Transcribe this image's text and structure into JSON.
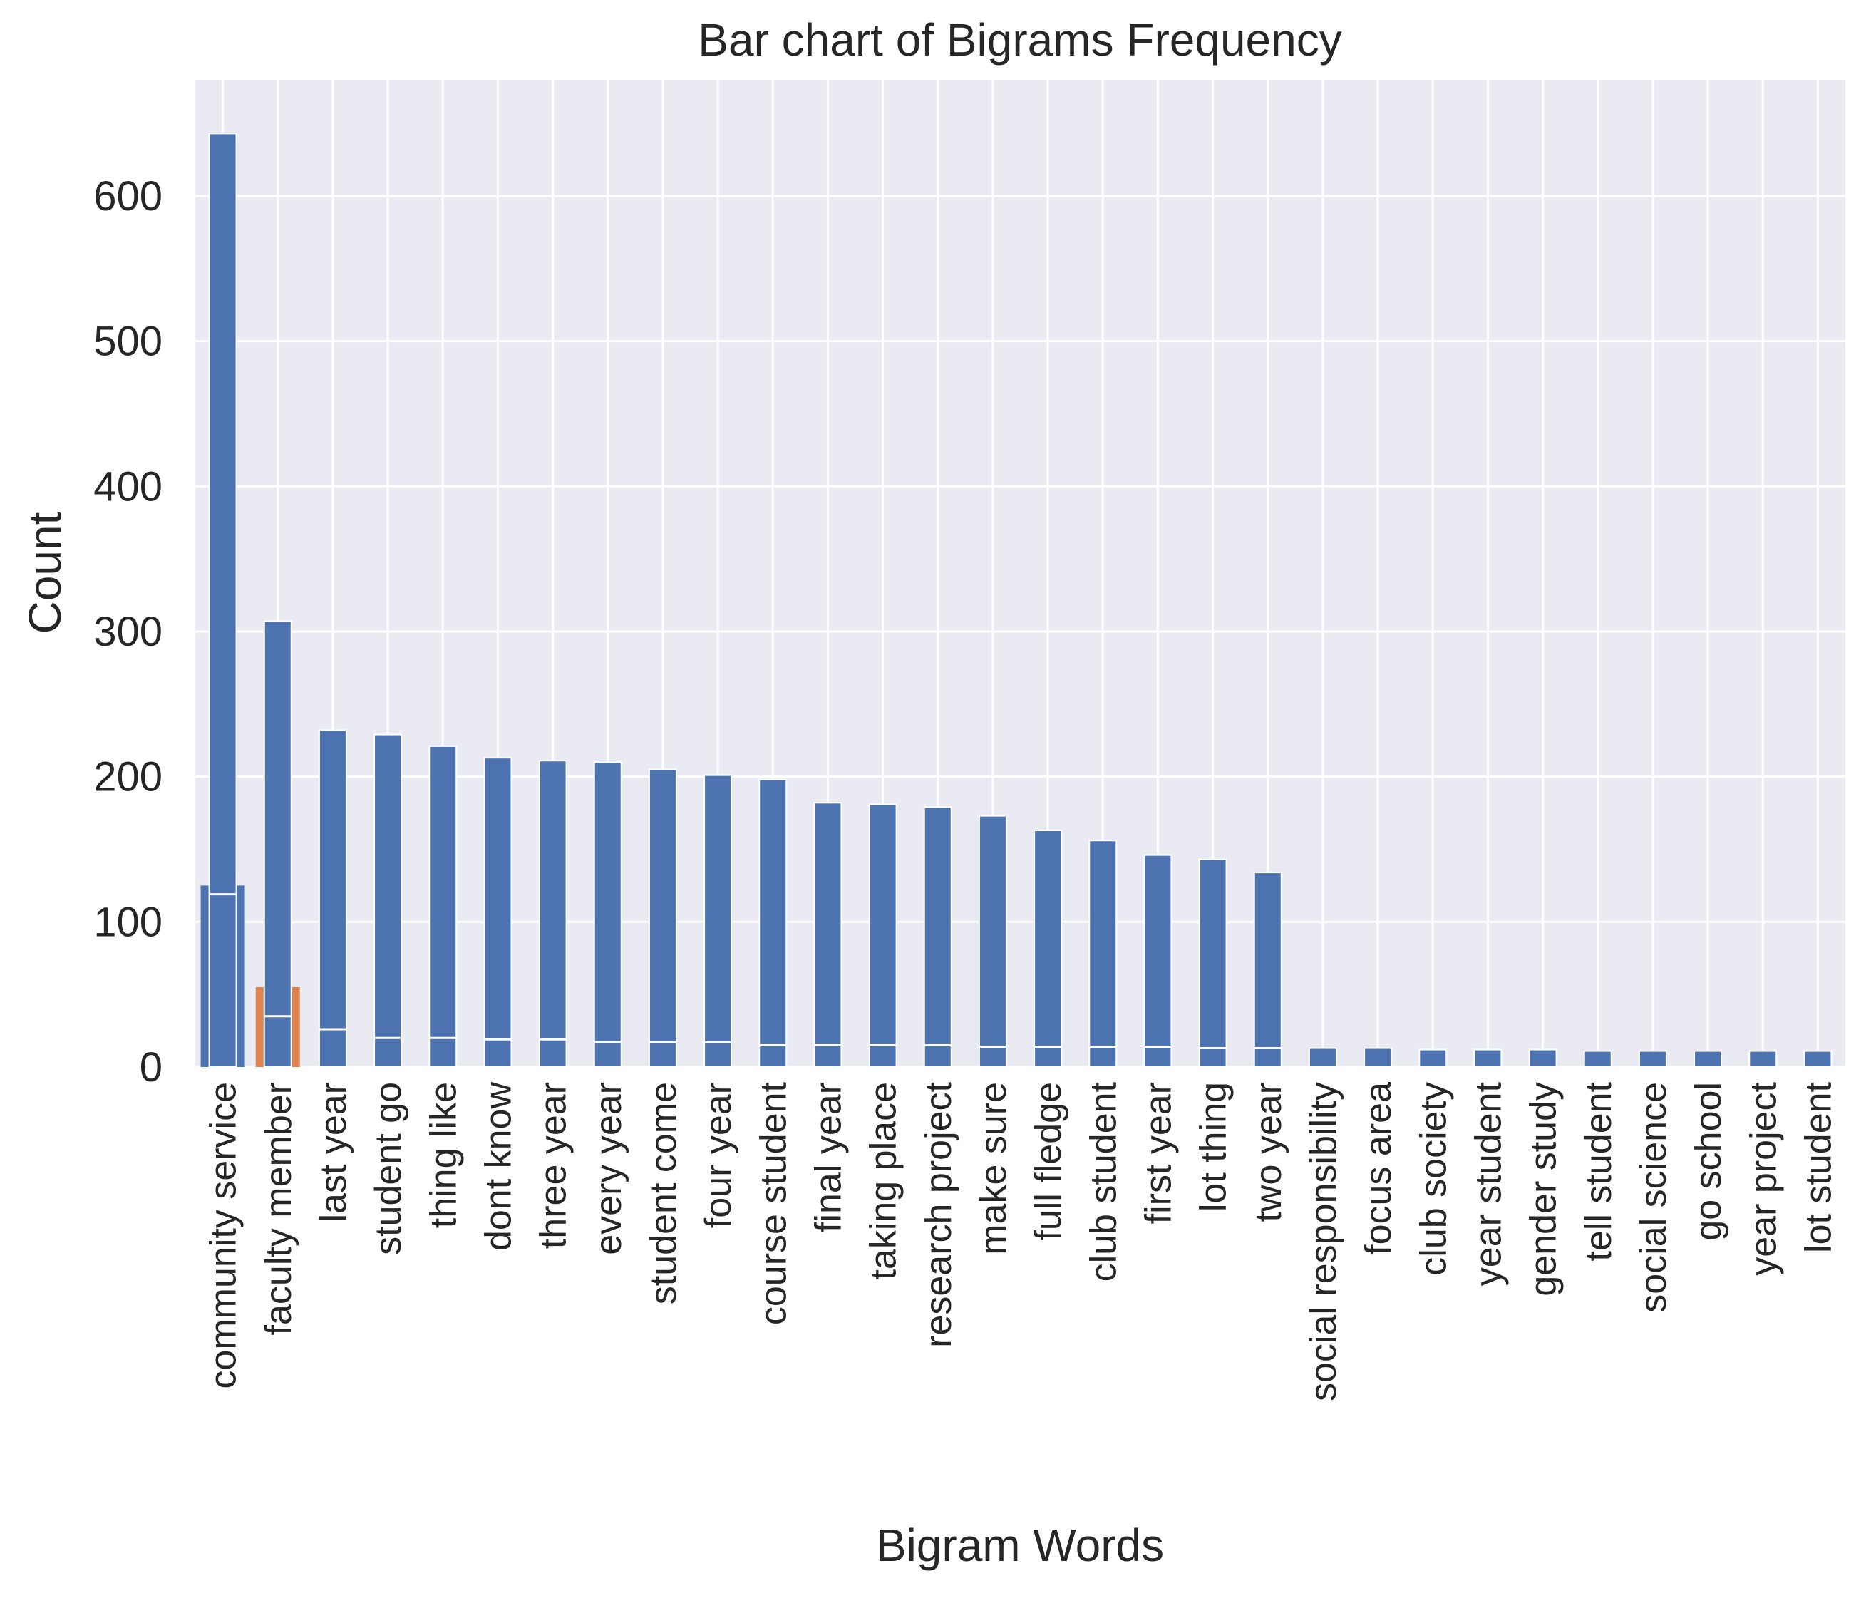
{
  "chart_data": {
    "type": "bar",
    "title": "Bar chart of Bigrams Frequency",
    "xlabel": "Bigram Words",
    "ylabel": "Count",
    "ylim": [
      0,
      680
    ],
    "yticks": [
      0,
      100,
      200,
      300,
      400,
      500,
      600
    ],
    "grid": true,
    "background": "#eaeaf2",
    "grid_color": "#ffffff",
    "categories": [
      "community service",
      "faculty member",
      "last year",
      "student go",
      "thing like",
      "dont know",
      "three year",
      "every year",
      "student come",
      "four year",
      "course student",
      "final year",
      "taking place",
      "research project",
      "make sure",
      "full fledge",
      "club student",
      "first year",
      "lot thing",
      "two year",
      "social responsibility",
      "focus area",
      "club society",
      "year student",
      "gender study",
      "tell student",
      "social science",
      "go school",
      "year project",
      "lot student"
    ],
    "series": [
      {
        "color": "#4c72b0",
        "values": [
          643,
          307,
          232,
          229,
          221,
          213,
          211,
          210,
          205,
          201,
          198,
          182,
          181,
          179,
          173,
          163,
          156,
          146,
          143,
          134,
          13,
          13,
          12,
          12,
          12,
          11,
          11,
          11,
          11,
          11
        ]
      }
    ],
    "overlay": {
      "colors": [
        "#4c72b0",
        "#dd8452"
      ],
      "outer_values": [
        125,
        55
      ],
      "inner_values": [
        119,
        35
      ],
      "inner_lower_marks": [
        0,
        0,
        26,
        20,
        20,
        19,
        19,
        17,
        17,
        17,
        15,
        15,
        15,
        15,
        14,
        14,
        14,
        14,
        13,
        13
      ]
    }
  }
}
